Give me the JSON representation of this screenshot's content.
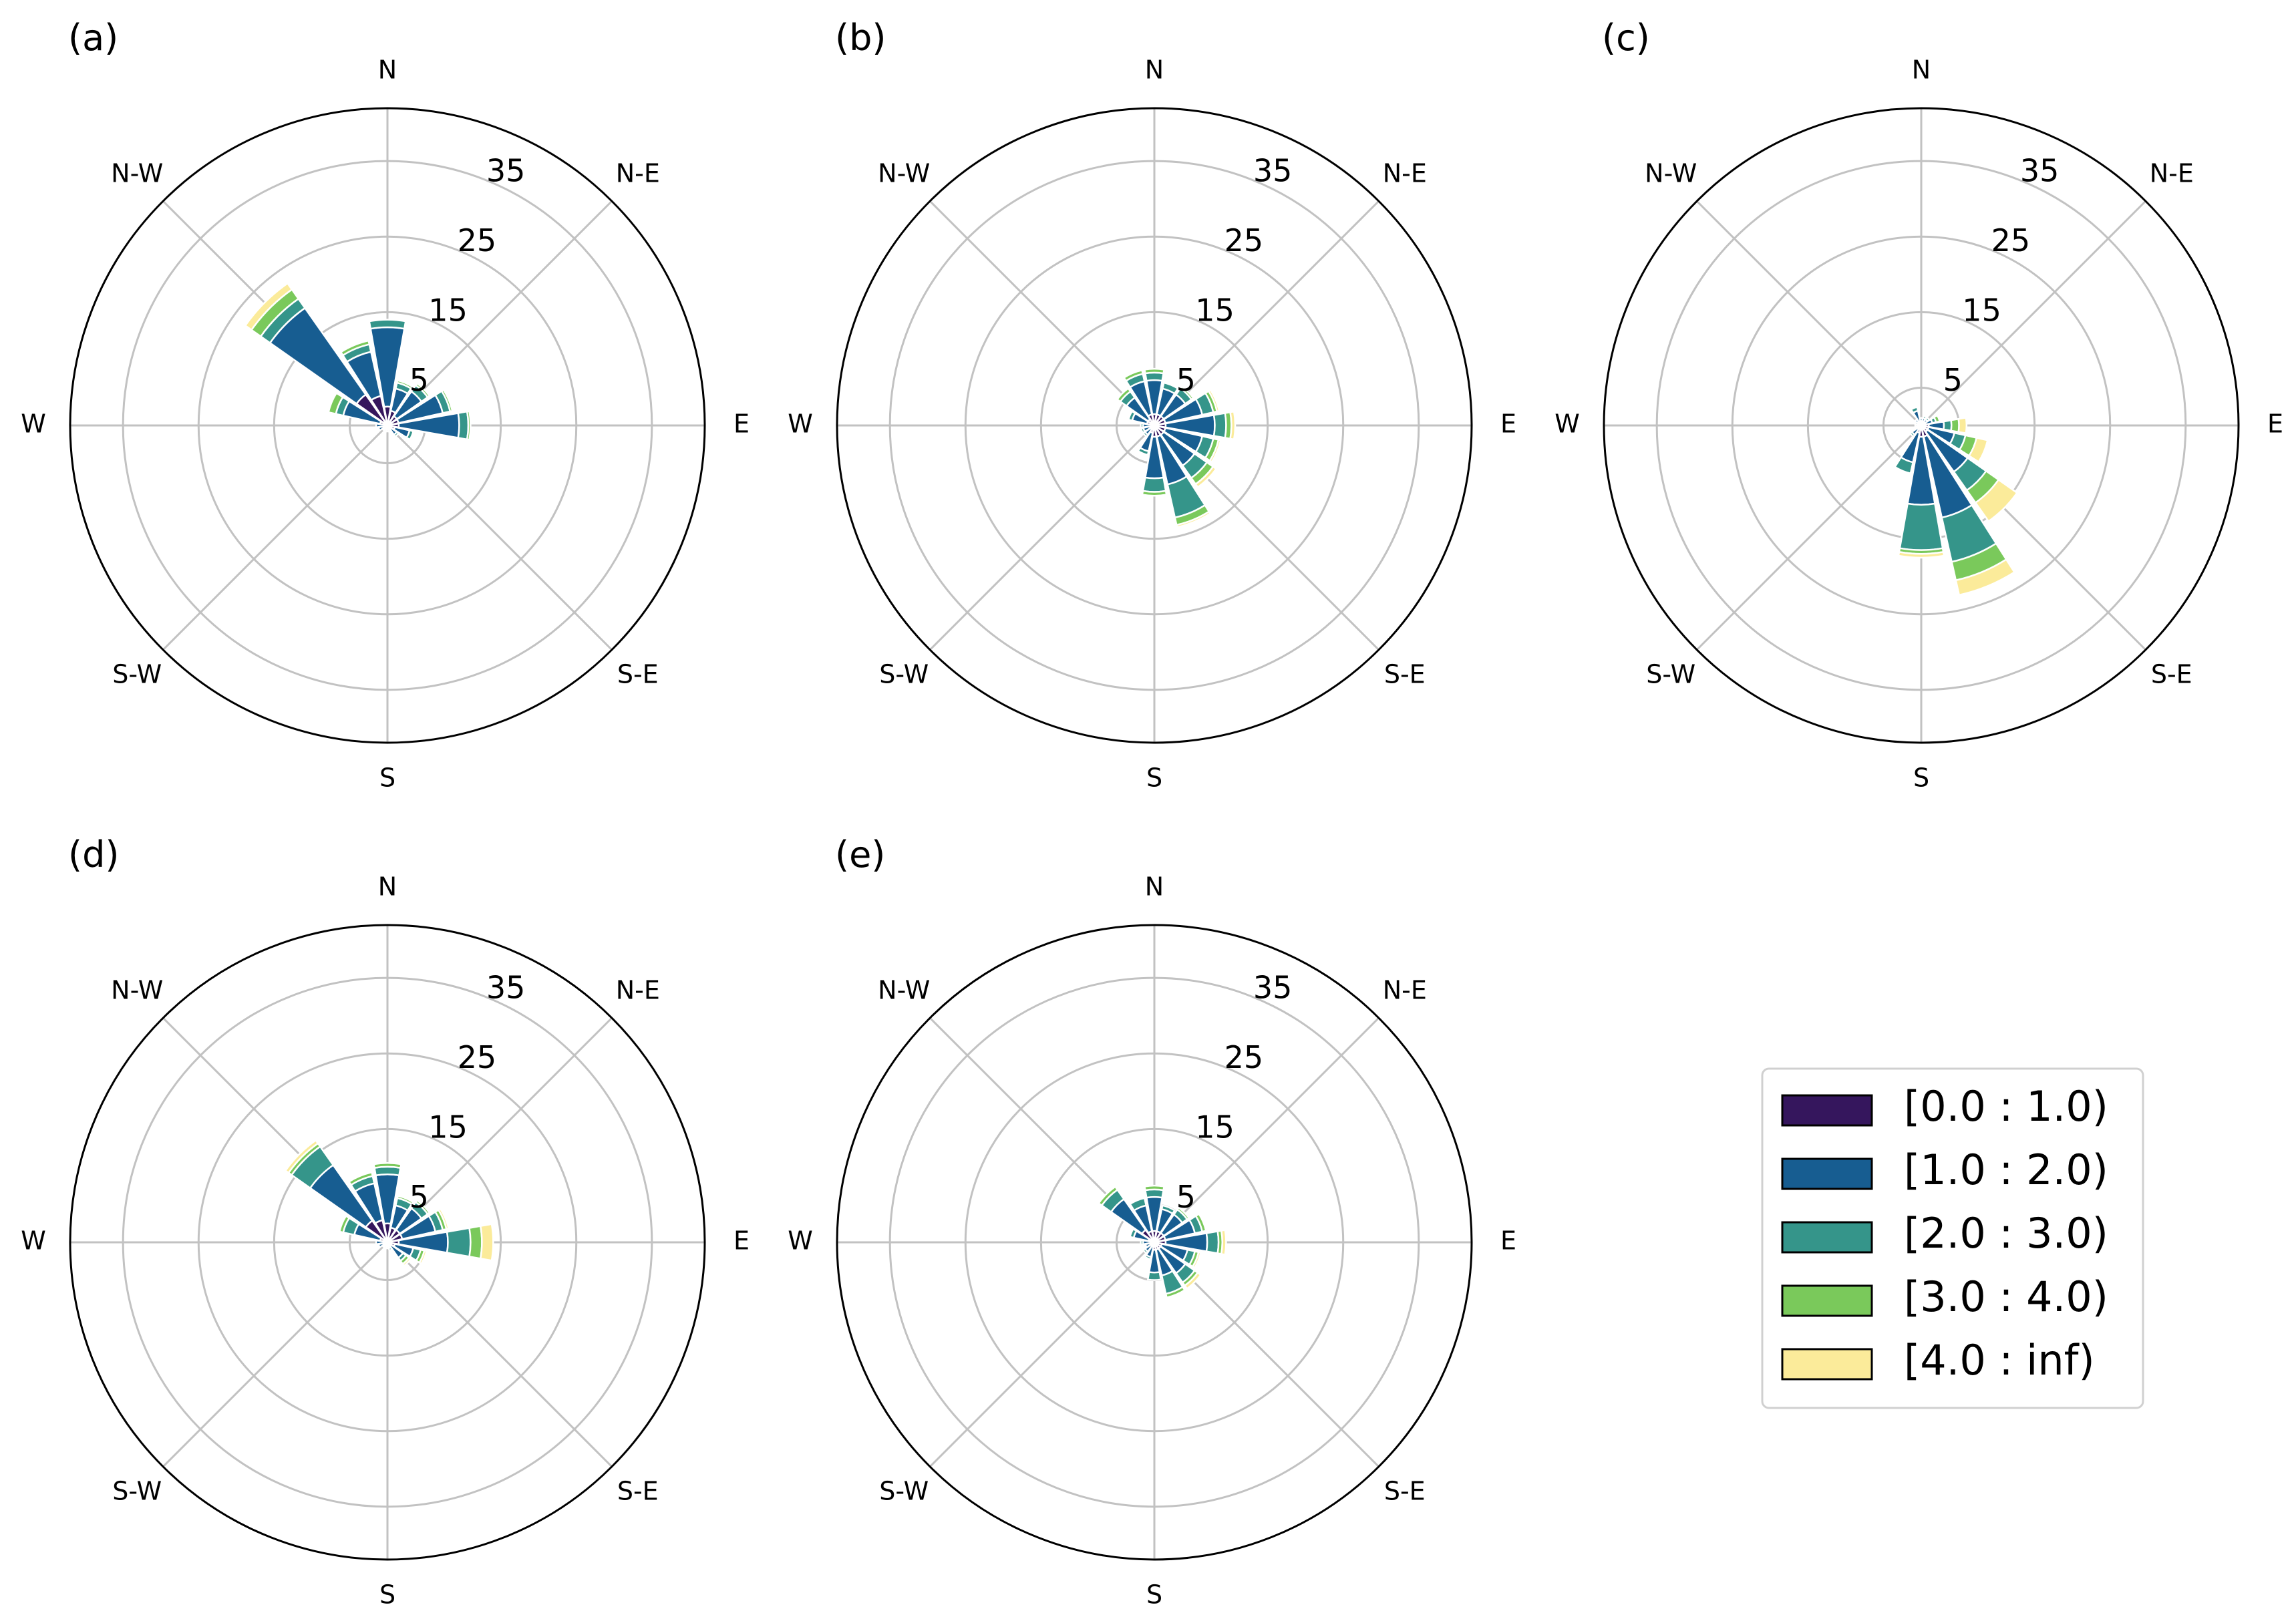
{
  "chart_data": [
    {
      "type": "windrose",
      "panel_label": "(a)",
      "directions": [
        "N",
        "N-E",
        "E",
        "S-E",
        "S",
        "S-W",
        "W",
        "N-W"
      ],
      "r_ticks": [
        5,
        15,
        25,
        35
      ],
      "r_max": 42,
      "sectors": 16,
      "sector_angles_deg": [
        0,
        22.5,
        45,
        67.5,
        90,
        112.5,
        135,
        157.5,
        180,
        202.5,
        225,
        247.5,
        270,
        292.5,
        315,
        337.5
      ],
      "bins": [
        "[0.0 : 1.0)",
        "[1.0 : 2.0)",
        "[2.0 : 3.0)",
        "[3.0 : 4.0)",
        "[4.0 : inf)"
      ],
      "values": [
        [
          2.5,
          10.5,
          1.0,
          0.0,
          0.0
        ],
        [
          2.0,
          3.0,
          0.8,
          0.3,
          0.0
        ],
        [
          1.5,
          4.0,
          1.0,
          0.3,
          0.0
        ],
        [
          1.5,
          6.0,
          1.0,
          0.3,
          0.0
        ],
        [
          1.5,
          8.0,
          1.2,
          0.3,
          0.0
        ],
        [
          1.0,
          2.0,
          0.5,
          0.0,
          0.0
        ],
        [
          0.5,
          1.0,
          0.3,
          0.0,
          0.0
        ],
        [
          0.3,
          0.5,
          0.0,
          0.0,
          0.0
        ],
        [
          0.3,
          0.5,
          0.0,
          0.0,
          0.0
        ],
        [
          0.3,
          0.5,
          0.0,
          0.0,
          0.0
        ],
        [
          0.3,
          0.5,
          0.0,
          0.0,
          0.0
        ],
        [
          0.5,
          0.7,
          0.0,
          0.0,
          0.0
        ],
        [
          0.5,
          1.0,
          0.0,
          0.0,
          0.0
        ],
        [
          1.0,
          5.0,
          1.0,
          1.0,
          0.0
        ],
        [
          5.0,
          14.0,
          1.5,
          1.5,
          1.0
        ],
        [
          4.0,
          6.0,
          1.0,
          0.5,
          0.0
        ]
      ]
    },
    {
      "type": "windrose",
      "panel_label": "(b)",
      "directions": [
        "N",
        "N-E",
        "E",
        "S-E",
        "S",
        "S-W",
        "W",
        "N-W"
      ],
      "r_ticks": [
        5,
        15,
        25,
        35
      ],
      "r_max": 42,
      "sectors": 16,
      "sector_angles_deg": [
        0,
        22.5,
        45,
        67.5,
        90,
        112.5,
        135,
        157.5,
        180,
        202.5,
        225,
        247.5,
        270,
        292.5,
        315,
        337.5
      ],
      "bins": [
        "[0.0 : 1.0)",
        "[1.0 : 2.0)",
        "[2.0 : 3.0)",
        "[3.0 : 4.0)",
        "[4.0 : inf)"
      ],
      "values": [
        [
          1.5,
          4.5,
          1.0,
          0.5,
          0.0
        ],
        [
          1.5,
          3.5,
          0.8,
          0.0,
          0.0
        ],
        [
          1.5,
          3.5,
          1.0,
          0.3,
          0.0
        ],
        [
          1.5,
          5.0,
          1.5,
          0.5,
          0.3
        ],
        [
          1.5,
          6.5,
          1.5,
          0.7,
          0.5
        ],
        [
          1.5,
          5.0,
          1.5,
          0.7,
          0.3
        ],
        [
          1.5,
          5.0,
          2.0,
          1.0,
          0.5
        ],
        [
          1.5,
          6.5,
          4.5,
          1.0,
          0.3
        ],
        [
          1.5,
          5.5,
          1.8,
          0.5,
          0.0
        ],
        [
          1.0,
          2.5,
          0.5,
          0.0,
          0.0
        ],
        [
          0.5,
          1.0,
          0.3,
          0.0,
          0.0
        ],
        [
          0.5,
          1.0,
          0.3,
          0.0,
          0.0
        ],
        [
          0.5,
          1.0,
          0.3,
          0.0,
          0.0
        ],
        [
          1.0,
          2.0,
          0.5,
          0.0,
          0.0
        ],
        [
          1.0,
          3.5,
          1.0,
          0.5,
          0.0
        ],
        [
          1.5,
          4.5,
          1.0,
          0.5,
          0.0
        ]
      ]
    },
    {
      "type": "windrose",
      "panel_label": "(c)",
      "directions": [
        "N",
        "N-E",
        "E",
        "S-E",
        "S",
        "S-W",
        "W",
        "N-W"
      ],
      "r_ticks": [
        5,
        15,
        25,
        35
      ],
      "r_max": 42,
      "sectors": 16,
      "sector_angles_deg": [
        0,
        22.5,
        45,
        67.5,
        90,
        112.5,
        135,
        157.5,
        180,
        202.5,
        225,
        247.5,
        270,
        292.5,
        315,
        337.5
      ],
      "bins": [
        "[0.0 : 1.0)",
        "[1.0 : 2.0)",
        "[2.0 : 3.0)",
        "[3.0 : 4.0)",
        "[4.0 : inf)"
      ],
      "values": [
        [
          0.5,
          0.5,
          0.0,
          0.0,
          0.0
        ],
        [
          0.5,
          0.5,
          0.3,
          0.0,
          0.0
        ],
        [
          0.5,
          0.5,
          0.3,
          0.0,
          0.0
        ],
        [
          0.5,
          1.0,
          0.5,
          0.5,
          0.0
        ],
        [
          1.0,
          2.0,
          1.0,
          1.0,
          1.0
        ],
        [
          1.0,
          3.5,
          1.5,
          1.5,
          1.5
        ],
        [
          1.0,
          6.5,
          3.0,
          2.0,
          3.0
        ],
        [
          1.5,
          11.0,
          6.0,
          2.5,
          2.0
        ],
        [
          1.5,
          9.0,
          6.0,
          0.5,
          0.5
        ],
        [
          1.0,
          4.0,
          1.5,
          0.0,
          0.0
        ],
        [
          0.5,
          1.0,
          0.3,
          0.0,
          0.0
        ],
        [
          0.3,
          0.5,
          0.0,
          0.0,
          0.0
        ],
        [
          0.3,
          0.5,
          0.0,
          0.0,
          0.0
        ],
        [
          0.3,
          0.5,
          0.0,
          0.0,
          0.0
        ],
        [
          0.5,
          0.5,
          0.0,
          0.0,
          0.0
        ],
        [
          0.5,
          1.5,
          0.5,
          0.0,
          0.0
        ]
      ]
    },
    {
      "type": "windrose",
      "panel_label": "(d)",
      "directions": [
        "N",
        "N-E",
        "E",
        "S-E",
        "S",
        "S-W",
        "W",
        "N-W"
      ],
      "r_ticks": [
        5,
        15,
        25,
        35
      ],
      "r_max": 42,
      "sectors": 16,
      "sector_angles_deg": [
        0,
        22.5,
        45,
        67.5,
        90,
        112.5,
        135,
        157.5,
        180,
        202.5,
        225,
        247.5,
        270,
        292.5,
        315,
        337.5
      ],
      "bins": [
        "[0.0 : 1.0)",
        "[1.0 : 2.0)",
        "[2.0 : 3.0)",
        "[3.0 : 4.0)",
        "[4.0 : inf)"
      ],
      "values": [
        [
          2.5,
          6.5,
          1.0,
          0.5,
          0.0
        ],
        [
          2.0,
          3.0,
          1.0,
          0.3,
          0.0
        ],
        [
          2.0,
          3.5,
          1.0,
          0.3,
          0.0
        ],
        [
          2.0,
          4.5,
          1.0,
          0.5,
          0.3
        ],
        [
          1.5,
          6.5,
          3.0,
          1.5,
          1.5
        ],
        [
          1.0,
          2.5,
          1.0,
          0.5,
          0.3
        ],
        [
          0.5,
          2.0,
          0.5,
          0.5,
          0.3
        ],
        [
          0.3,
          0.5,
          0.3,
          0.0,
          0.0
        ],
        [
          0.3,
          0.5,
          0.0,
          0.0,
          0.0
        ],
        [
          0.3,
          0.5,
          0.0,
          0.0,
          0.0
        ],
        [
          0.3,
          0.5,
          0.0,
          0.0,
          0.0
        ],
        [
          0.5,
          0.7,
          0.0,
          0.0,
          0.0
        ],
        [
          0.5,
          1.0,
          0.0,
          0.0,
          0.0
        ],
        [
          1.0,
          3.5,
          1.5,
          0.5,
          0.0
        ],
        [
          3.5,
          9.0,
          3.0,
          0.5,
          0.5
        ],
        [
          3.0,
          5.0,
          1.0,
          0.5,
          0.0
        ]
      ]
    },
    {
      "type": "windrose",
      "panel_label": "(e)",
      "directions": [
        "N",
        "N-E",
        "E",
        "S-E",
        "S",
        "S-W",
        "W",
        "N-W"
      ],
      "r_ticks": [
        5,
        15,
        25,
        35
      ],
      "r_max": 42,
      "sectors": 16,
      "sector_angles_deg": [
        0,
        22.5,
        45,
        67.5,
        90,
        112.5,
        135,
        157.5,
        180,
        202.5,
        225,
        247.5,
        270,
        292.5,
        315,
        337.5
      ],
      "bins": [
        "[0.0 : 1.0)",
        "[1.0 : 2.0)",
        "[2.0 : 3.0)",
        "[3.0 : 4.0)",
        "[4.0 : inf)"
      ],
      "values": [
        [
          1.5,
          4.5,
          1.0,
          0.5,
          0.0
        ],
        [
          1.5,
          3.0,
          0.5,
          0.0,
          0.0
        ],
        [
          1.5,
          3.0,
          0.8,
          0.3,
          0.0
        ],
        [
          1.5,
          4.0,
          1.0,
          0.5,
          0.0
        ],
        [
          1.5,
          5.5,
          1.5,
          0.5,
          0.5
        ],
        [
          1.0,
          3.5,
          1.0,
          0.5,
          0.3
        ],
        [
          1.0,
          4.0,
          1.5,
          0.5,
          0.5
        ],
        [
          1.0,
          3.5,
          2.5,
          0.5,
          0.0
        ],
        [
          1.0,
          3.0,
          1.0,
          0.0,
          0.0
        ],
        [
          0.5,
          1.5,
          0.3,
          0.0,
          0.0
        ],
        [
          0.5,
          1.0,
          0.3,
          0.0,
          0.0
        ],
        [
          0.5,
          0.7,
          0.0,
          0.0,
          0.0
        ],
        [
          0.5,
          1.0,
          0.3,
          0.0,
          0.0
        ],
        [
          0.8,
          2.0,
          0.5,
          0.0,
          0.0
        ],
        [
          2.0,
          5.0,
          1.5,
          0.5,
          0.0
        ],
        [
          1.5,
          3.5,
          1.0,
          0.0,
          0.0
        ]
      ]
    }
  ],
  "legend": {
    "items": [
      {
        "label": "[0.0 : 1.0)",
        "color": "#35165d"
      },
      {
        "label": "[1.0 : 2.0)",
        "color": "#175d91"
      },
      {
        "label": "[2.0 : 3.0)",
        "color": "#35958a"
      },
      {
        "label": "[3.0 : 4.0)",
        "color": "#7ac95b"
      },
      {
        "label": "[4.0 : inf)",
        "color": "#fbeb9a"
      }
    ]
  }
}
